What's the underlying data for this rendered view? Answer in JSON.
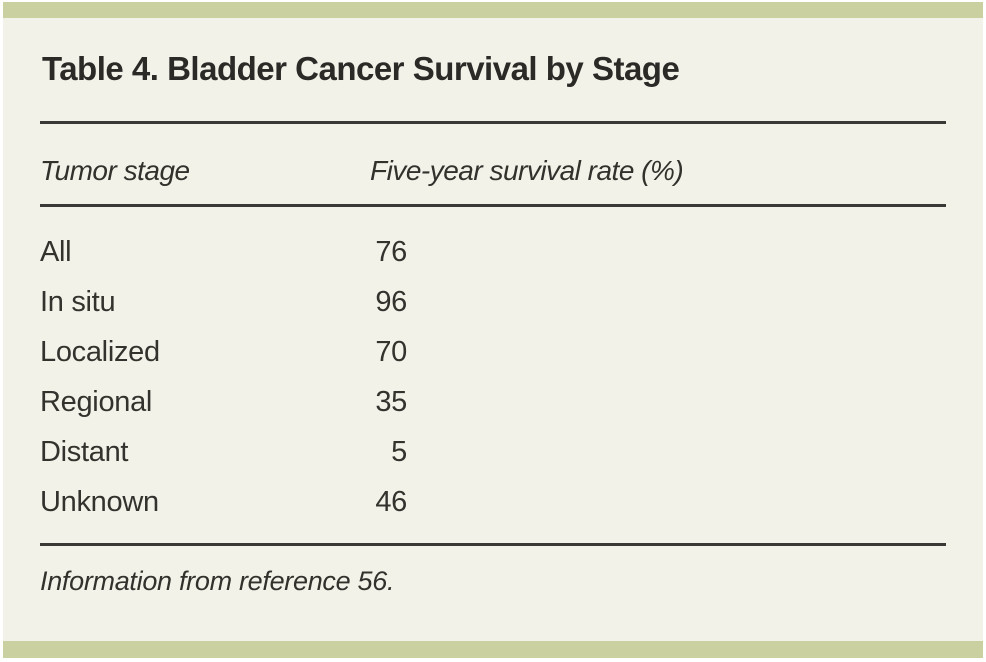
{
  "table": {
    "title": "Table 4. Bladder Cancer Survival by Stage",
    "columns": {
      "stage": "Tumor stage",
      "rate": "Five-year survival rate (%)"
    },
    "rows": [
      {
        "stage": "All",
        "rate": "76"
      },
      {
        "stage": "In situ",
        "rate": "96"
      },
      {
        "stage": "Localized",
        "rate": "70"
      },
      {
        "stage": "Regional",
        "rate": "35"
      },
      {
        "stage": "Distant",
        "rate": "5"
      },
      {
        "stage": "Unknown",
        "rate": "46"
      }
    ],
    "footnote": "Information from reference 56."
  },
  "colors": {
    "band_green": "#cbd0a0",
    "background_cream": "#f3f2e9",
    "text_dark": "#2e2c28",
    "rule_dark": "#3a3935"
  }
}
